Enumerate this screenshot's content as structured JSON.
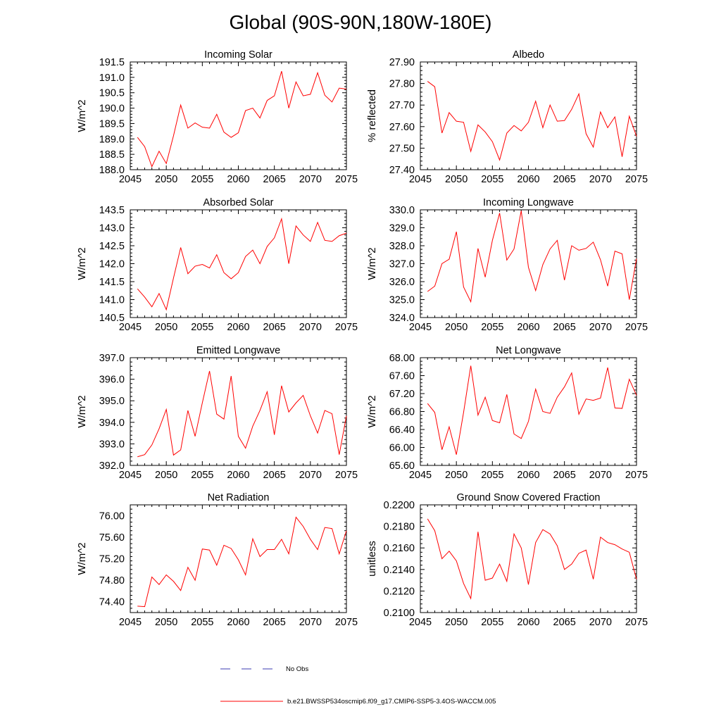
{
  "title": "Global (90S-90N,180W-180E)",
  "legend": {
    "entries": [
      {
        "label": "No Obs",
        "color": "#3b3bb3",
        "style": "dashed"
      },
      {
        "label": "b.e21.BWSSP534oscmip6.f09_g17.CMIP6-SSP5-3.4OS-WACCM.005",
        "color": "#ff0000",
        "style": "solid"
      }
    ]
  },
  "chart_data": [
    {
      "type": "line",
      "title": "Incoming Solar",
      "xlabel": "",
      "ylabel": "W/m^2",
      "xlim": [
        2045,
        2075
      ],
      "ylim": [
        188.0,
        191.5
      ],
      "xticks": [
        2045,
        2050,
        2055,
        2060,
        2065,
        2070,
        2075
      ],
      "yticks": [
        "188.0",
        "188.5",
        "189.0",
        "189.5",
        "190.0",
        "190.5",
        "191.0",
        "191.5"
      ],
      "x": [
        2046,
        2047,
        2048,
        2049,
        2050,
        2051,
        2052,
        2053,
        2054,
        2055,
        2056,
        2057,
        2058,
        2059,
        2060,
        2061,
        2062,
        2063,
        2064,
        2065,
        2066,
        2067,
        2068,
        2069,
        2070,
        2071,
        2072,
        2073,
        2074,
        2075
      ],
      "series": [
        {
          "name": "b.e21.BWSSP534oscmip6.f09_g17.CMIP6-SSP5-3.4OS-WACCM.005",
          "color": "#ff0000",
          "values": [
            189.05,
            188.75,
            188.1,
            188.6,
            188.2,
            189.1,
            190.1,
            189.35,
            189.52,
            189.38,
            189.35,
            189.8,
            189.22,
            189.05,
            189.2,
            189.92,
            190.0,
            189.68,
            190.25,
            190.4,
            191.2,
            190.0,
            190.85,
            190.4,
            190.45,
            191.15,
            190.42,
            190.2,
            190.65,
            190.62
          ]
        }
      ]
    },
    {
      "type": "line",
      "title": "Albedo",
      "xlabel": "",
      "ylabel": "% reflected",
      "xlim": [
        2045,
        2075
      ],
      "ylim": [
        27.4,
        27.9
      ],
      "xticks": [
        2045,
        2050,
        2055,
        2060,
        2065,
        2070,
        2075
      ],
      "yticks": [
        "27.40",
        "27.50",
        "27.60",
        "27.70",
        "27.80",
        "27.90"
      ],
      "x": [
        2046,
        2047,
        2048,
        2049,
        2050,
        2051,
        2052,
        2053,
        2054,
        2055,
        2056,
        2057,
        2058,
        2059,
        2060,
        2061,
        2062,
        2063,
        2064,
        2065,
        2066,
        2067,
        2068,
        2069,
        2070,
        2071,
        2072,
        2073,
        2074,
        2075
      ],
      "series": [
        {
          "name": "b.e21.BWSSP534oscmip6.f09_g17.CMIP6-SSP5-3.4OS-WACCM.005",
          "color": "#ff0000",
          "values": [
            27.81,
            27.785,
            27.57,
            27.665,
            27.625,
            27.62,
            27.485,
            27.608,
            27.575,
            27.53,
            27.445,
            27.57,
            27.605,
            27.58,
            27.62,
            27.718,
            27.595,
            27.7,
            27.625,
            27.628,
            27.68,
            27.752,
            27.567,
            27.505,
            27.668,
            27.595,
            27.645,
            27.46,
            27.648,
            27.555
          ]
        }
      ]
    },
    {
      "type": "line",
      "title": "Absorbed Solar",
      "xlabel": "",
      "ylabel": "W/m^2",
      "xlim": [
        2045,
        2075
      ],
      "ylim": [
        140.5,
        143.5
      ],
      "xticks": [
        2045,
        2050,
        2055,
        2060,
        2065,
        2070,
        2075
      ],
      "yticks": [
        "140.5",
        "141.0",
        "141.5",
        "142.0",
        "142.5",
        "143.0",
        "143.5"
      ],
      "x": [
        2046,
        2047,
        2048,
        2049,
        2050,
        2051,
        2052,
        2053,
        2054,
        2055,
        2056,
        2057,
        2058,
        2059,
        2060,
        2061,
        2062,
        2063,
        2064,
        2065,
        2066,
        2067,
        2068,
        2069,
        2070,
        2071,
        2072,
        2073,
        2074,
        2075
      ],
      "series": [
        {
          "name": "b.e21.BWSSP534oscmip6.f09_g17.CMIP6-SSP5-3.4OS-WACCM.005",
          "color": "#ff0000",
          "values": [
            141.3,
            141.07,
            140.8,
            141.17,
            140.72,
            141.6,
            142.45,
            141.72,
            141.93,
            141.98,
            141.88,
            142.25,
            141.75,
            141.58,
            141.75,
            142.2,
            142.38,
            142.0,
            142.48,
            142.72,
            143.25,
            142.0,
            143.05,
            142.8,
            142.62,
            143.15,
            142.65,
            142.62,
            142.78,
            142.85
          ]
        }
      ]
    },
    {
      "type": "line",
      "title": "Incoming Longwave",
      "xlabel": "",
      "ylabel": "W/m^2",
      "xlim": [
        2045,
        2075
      ],
      "ylim": [
        324.0,
        330.0
      ],
      "xticks": [
        2045,
        2050,
        2055,
        2060,
        2065,
        2070,
        2075
      ],
      "yticks": [
        "324.0",
        "325.0",
        "326.0",
        "327.0",
        "328.0",
        "329.0",
        "330.0"
      ],
      "x": [
        2046,
        2047,
        2048,
        2049,
        2050,
        2051,
        2052,
        2053,
        2054,
        2055,
        2056,
        2057,
        2058,
        2059,
        2060,
        2061,
        2062,
        2063,
        2064,
        2065,
        2066,
        2067,
        2068,
        2069,
        2070,
        2071,
        2072,
        2073,
        2074,
        2075
      ],
      "series": [
        {
          "name": "b.e21.BWSSP534oscmip6.f09_g17.CMIP6-SSP5-3.4OS-WACCM.005",
          "color": "#ff0000",
          "values": [
            325.45,
            325.75,
            327.0,
            327.25,
            328.78,
            325.7,
            324.88,
            327.85,
            326.25,
            328.3,
            329.82,
            327.2,
            327.82,
            329.95,
            326.8,
            325.5,
            326.95,
            327.82,
            328.3,
            326.08,
            328.0,
            327.75,
            327.85,
            328.2,
            327.22,
            325.75,
            327.7,
            327.55,
            325.0,
            327.28
          ]
        }
      ]
    },
    {
      "type": "line",
      "title": "Emitted Longwave",
      "xlabel": "",
      "ylabel": "W/m^2",
      "xlim": [
        2045,
        2075
      ],
      "ylim": [
        392.0,
        397.0
      ],
      "xticks": [
        2045,
        2050,
        2055,
        2060,
        2065,
        2070,
        2075
      ],
      "yticks": [
        "392.0",
        "393.0",
        "394.0",
        "395.0",
        "396.0",
        "397.0"
      ],
      "x": [
        2046,
        2047,
        2048,
        2049,
        2050,
        2051,
        2052,
        2053,
        2054,
        2055,
        2056,
        2057,
        2058,
        2059,
        2060,
        2061,
        2062,
        2063,
        2064,
        2065,
        2066,
        2067,
        2068,
        2069,
        2070,
        2071,
        2072,
        2073,
        2074,
        2075
      ],
      "series": [
        {
          "name": "b.e21.BWSSP534oscmip6.f09_g17.CMIP6-SSP5-3.4OS-WACCM.005",
          "color": "#ff0000",
          "values": [
            392.4,
            392.5,
            392.95,
            393.7,
            394.6,
            392.48,
            392.72,
            394.55,
            393.35,
            394.9,
            396.38,
            394.38,
            394.15,
            396.15,
            393.35,
            392.8,
            393.82,
            394.55,
            395.42,
            393.42,
            395.7,
            394.48,
            394.9,
            395.25,
            394.3,
            393.5,
            394.55,
            394.4,
            392.5,
            394.3
          ]
        }
      ]
    },
    {
      "type": "line",
      "title": "Net Longwave",
      "xlabel": "",
      "ylabel": "W/m^2",
      "xlim": [
        2045,
        2075
      ],
      "ylim": [
        65.6,
        68.0
      ],
      "xticks": [
        2045,
        2050,
        2055,
        2060,
        2065,
        2070,
        2075
      ],
      "yticks": [
        "65.60",
        "66.00",
        "66.40",
        "66.80",
        "67.20",
        "67.60",
        "68.00"
      ],
      "x": [
        2046,
        2047,
        2048,
        2049,
        2050,
        2051,
        2052,
        2053,
        2054,
        2055,
        2056,
        2057,
        2058,
        2059,
        2060,
        2061,
        2062,
        2063,
        2064,
        2065,
        2066,
        2067,
        2068,
        2069,
        2070,
        2071,
        2072,
        2073,
        2074,
        2075
      ],
      "series": [
        {
          "name": "b.e21.BWSSP534oscmip6.f09_g17.CMIP6-SSP5-3.4OS-WACCM.005",
          "color": "#ff0000",
          "values": [
            66.98,
            66.78,
            65.95,
            66.46,
            65.84,
            66.78,
            67.82,
            66.72,
            67.12,
            66.6,
            66.55,
            67.18,
            66.3,
            66.2,
            66.58,
            67.3,
            66.8,
            66.76,
            67.12,
            67.35,
            67.66,
            66.74,
            67.08,
            67.05,
            67.1,
            67.78,
            66.88,
            66.87,
            67.52,
            67.16
          ]
        }
      ]
    },
    {
      "type": "line",
      "title": "Net Radiation",
      "xlabel": "",
      "ylabel": "W/m^2",
      "xlim": [
        2045,
        2075
      ],
      "ylim": [
        74.2,
        76.2
      ],
      "xticks": [
        2045,
        2050,
        2055,
        2060,
        2065,
        2070,
        2075
      ],
      "yticks": [
        "74.40",
        "74.80",
        "75.20",
        "75.60",
        "76.00"
      ],
      "x": [
        2046,
        2047,
        2048,
        2049,
        2050,
        2051,
        2052,
        2053,
        2054,
        2055,
        2056,
        2057,
        2058,
        2059,
        2060,
        2061,
        2062,
        2063,
        2064,
        2065,
        2066,
        2067,
        2068,
        2069,
        2070,
        2071,
        2072,
        2073,
        2074,
        2075
      ],
      "series": [
        {
          "name": "b.e21.BWSSP534oscmip6.f09_g17.CMIP6-SSP5-3.4OS-WACCM.005",
          "color": "#ff0000",
          "values": [
            74.32,
            74.31,
            74.86,
            74.72,
            74.9,
            74.78,
            74.61,
            75.04,
            74.8,
            75.38,
            75.36,
            75.08,
            75.45,
            75.39,
            75.18,
            74.9,
            75.57,
            75.24,
            75.37,
            75.37,
            75.56,
            75.29,
            75.97,
            75.8,
            75.56,
            75.37,
            75.78,
            75.76,
            75.29,
            75.72
          ]
        }
      ]
    },
    {
      "type": "line",
      "title": "Ground Snow Covered Fraction",
      "xlabel": "",
      "ylabel": "unitless",
      "xlim": [
        2045,
        2075
      ],
      "ylim": [
        0.21,
        0.22
      ],
      "xticks": [
        2045,
        2050,
        2055,
        2060,
        2065,
        2070,
        2075
      ],
      "yticks": [
        "0.2100",
        "0.2120",
        "0.2140",
        "0.2160",
        "0.2180",
        "0.2200"
      ],
      "x": [
        2046,
        2047,
        2048,
        2049,
        2050,
        2051,
        2052,
        2053,
        2054,
        2055,
        2056,
        2057,
        2058,
        2059,
        2060,
        2061,
        2062,
        2063,
        2064,
        2065,
        2066,
        2067,
        2068,
        2069,
        2070,
        2071,
        2072,
        2073,
        2074,
        2075
      ],
      "series": [
        {
          "name": "b.e21.BWSSP534oscmip6.f09_g17.CMIP6-SSP5-3.4OS-WACCM.005",
          "color": "#ff0000",
          "values": [
            0.2187,
            0.2176,
            0.215,
            0.2157,
            0.2148,
            0.2127,
            0.2113,
            0.2175,
            0.213,
            0.2132,
            0.2145,
            0.2129,
            0.2173,
            0.216,
            0.2126,
            0.2165,
            0.2177,
            0.2173,
            0.2162,
            0.214,
            0.2145,
            0.2155,
            0.2158,
            0.2131,
            0.217,
            0.2165,
            0.2163,
            0.2159,
            0.2156,
            0.2131
          ]
        }
      ]
    }
  ]
}
